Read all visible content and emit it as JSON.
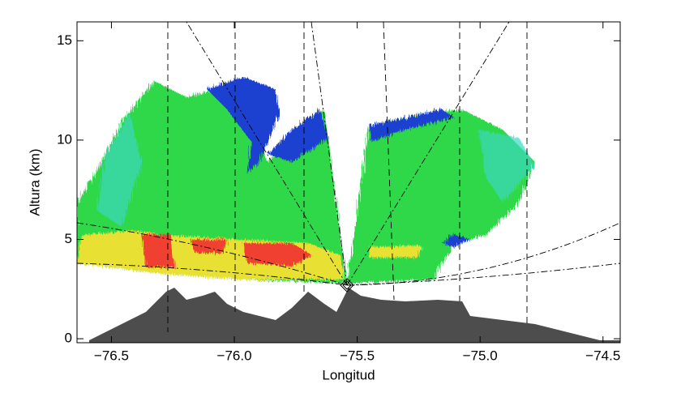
{
  "chart_data": {
    "type": "rhi",
    "xlabel": "Longitud",
    "ylabel": "Altura (km)",
    "xlim": [
      -76.64,
      -74.43
    ],
    "ylim": [
      -0.2,
      15.95
    ],
    "xticks": [
      {
        "value": -76.5,
        "label": "−76.5"
      },
      {
        "value": -76.0,
        "label": "−76.0"
      },
      {
        "value": -75.5,
        "label": "−75.5"
      },
      {
        "value": -75.0,
        "label": "−75.0"
      },
      {
        "value": -74.5,
        "label": "−74.5"
      }
    ],
    "yticks": [
      0,
      5,
      10,
      15
    ],
    "terrain_color": "#4d4d4d"
  }
}
